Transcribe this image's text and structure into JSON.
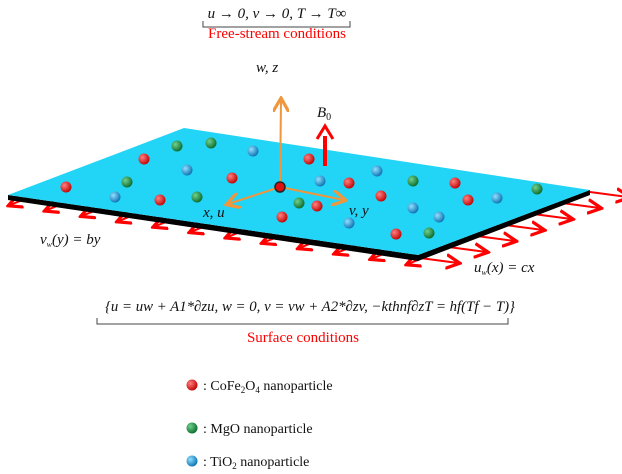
{
  "free_stream": {
    "equation": "u → 0, v → 0,  T → T∞",
    "label": "Free-stream conditions"
  },
  "axes": {
    "vertical": "w, z",
    "x_axis": "x, u",
    "y_axis": "v, y",
    "field": "B",
    "field_sub": "0"
  },
  "velocities": {
    "v_wall": "v",
    "v_wall_sub": "w",
    "v_wall_rest": "(y) = by",
    "u_wall": "u",
    "u_wall_sub": "w",
    "u_wall_rest": "(x) = cx"
  },
  "surface": {
    "equation": "{u = uw + A1*∂zu,  w = 0,  v = vw + A2*∂zv,  −kthnf∂zT = hf(Tf − T)}",
    "label": "Surface conditions"
  },
  "legend": [
    {
      "prefix": ": CoFe",
      "sub1": "2",
      "mid": "O",
      "sub2": "4",
      "suffix": " nanoparticle",
      "color": "#e01010"
    },
    {
      "prefix": ": MgO nanoparticle",
      "sub1": "",
      "mid": "",
      "sub2": "",
      "suffix": "",
      "color": "#1a9a3c"
    },
    {
      "prefix": ": TiO",
      "sub1": "2",
      "mid": "",
      "sub2": "",
      "suffix": " nanoparticle",
      "color": "#1a9ad8"
    }
  ],
  "colors": {
    "plate": "#22d4f6",
    "axes": "#f0963c",
    "arrows": "#ff0000",
    "edge": "#000000"
  }
}
